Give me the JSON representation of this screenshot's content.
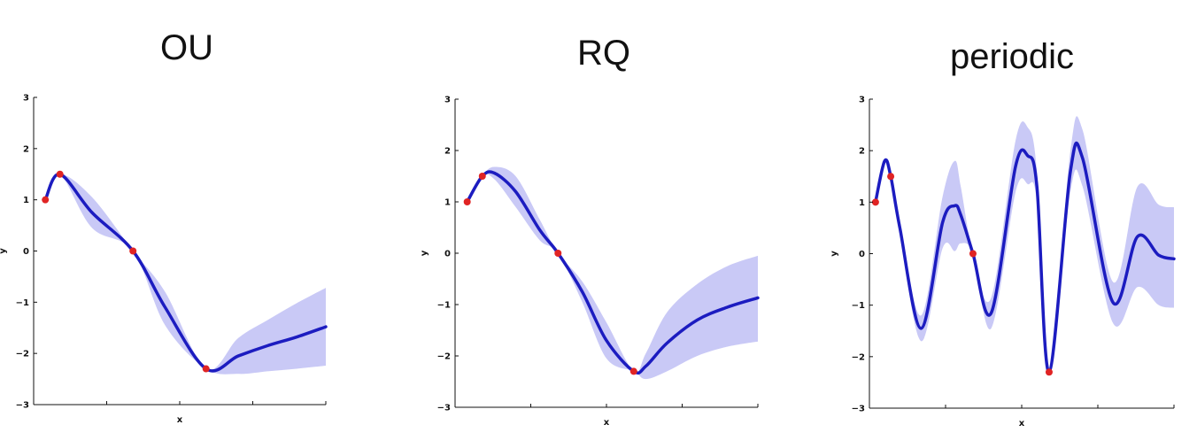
{
  "colors": {
    "mean_line": "#1c1cc0",
    "band": "#c9c9f6",
    "observed_point": "#e02424",
    "axis": "#111111"
  },
  "chart_data": [
    {
      "type": "line",
      "title": "OU",
      "xlabel": "x",
      "ylabel": "y",
      "xlim": [
        0,
        1
      ],
      "ylim": [
        -3,
        3
      ],
      "yticks": [
        "3",
        "2",
        "1",
        "0",
        "−1",
        "−2",
        "−3"
      ],
      "grid": false,
      "observations": [
        {
          "x": 0.04,
          "y": 1.0
        },
        {
          "x": 0.09,
          "y": 1.5
        },
        {
          "x": 0.34,
          "y": 0.0
        },
        {
          "x": 0.59,
          "y": -2.3
        }
      ],
      "series": [
        {
          "role": "mean",
          "x": [
            0.04,
            0.09,
            0.2,
            0.34,
            0.45,
            0.59,
            0.7,
            0.8,
            0.9,
            1.0
          ],
          "y": [
            1.0,
            1.5,
            0.75,
            0.0,
            -1.1,
            -2.3,
            -2.05,
            -1.85,
            -1.68,
            -1.48
          ]
        },
        {
          "role": "upper",
          "x": [
            0.04,
            0.09,
            0.2,
            0.34,
            0.45,
            0.59,
            0.7,
            0.8,
            0.9,
            1.0
          ],
          "y": [
            1.0,
            1.5,
            1.05,
            0.0,
            -0.8,
            -2.3,
            -1.7,
            -1.35,
            -1.02,
            -0.72
          ]
        },
        {
          "role": "lower",
          "x": [
            0.04,
            0.09,
            0.2,
            0.34,
            0.45,
            0.59,
            0.7,
            0.8,
            0.9,
            1.0
          ],
          "y": [
            1.0,
            1.5,
            0.45,
            0.0,
            -1.45,
            -2.3,
            -2.4,
            -2.35,
            -2.3,
            -2.24
          ]
        }
      ]
    },
    {
      "type": "line",
      "title": "RQ",
      "xlabel": "x",
      "ylabel": "y",
      "xlim": [
        0,
        1
      ],
      "ylim": [
        -3,
        3
      ],
      "yticks": [
        "3",
        "2",
        "1",
        "0",
        "−1",
        "−2",
        "−3"
      ],
      "grid": false,
      "observations": [
        {
          "x": 0.04,
          "y": 1.0
        },
        {
          "x": 0.09,
          "y": 1.5
        },
        {
          "x": 0.34,
          "y": 0.0
        },
        {
          "x": 0.59,
          "y": -2.3
        }
      ],
      "series": [
        {
          "role": "mean",
          "x": [
            0.04,
            0.09,
            0.13,
            0.2,
            0.28,
            0.34,
            0.42,
            0.5,
            0.59,
            0.63,
            0.7,
            0.8,
            0.9,
            1.0
          ],
          "y": [
            1.0,
            1.5,
            1.56,
            1.2,
            0.45,
            0.0,
            -0.75,
            -1.7,
            -2.3,
            -2.2,
            -1.75,
            -1.3,
            -1.05,
            -0.87
          ]
        },
        {
          "role": "upper",
          "x": [
            0.04,
            0.09,
            0.13,
            0.2,
            0.28,
            0.34,
            0.42,
            0.5,
            0.59,
            0.63,
            0.7,
            0.8,
            0.9,
            1.0
          ],
          "y": [
            1.0,
            1.5,
            1.68,
            1.5,
            0.65,
            0.0,
            -0.55,
            -1.35,
            -2.3,
            -1.95,
            -1.15,
            -0.6,
            -0.25,
            -0.05
          ]
        },
        {
          "role": "lower",
          "x": [
            0.04,
            0.09,
            0.13,
            0.2,
            0.28,
            0.34,
            0.42,
            0.5,
            0.59,
            0.63,
            0.7,
            0.8,
            0.9,
            1.0
          ],
          "y": [
            1.0,
            1.5,
            1.44,
            0.9,
            0.25,
            0.0,
            -0.95,
            -2.05,
            -2.3,
            -2.45,
            -2.3,
            -2.0,
            -1.82,
            -1.72
          ]
        }
      ]
    },
    {
      "type": "line",
      "title": "periodic",
      "xlabel": "x",
      "ylabel": "y",
      "xlim": [
        0,
        1
      ],
      "ylim": [
        -3,
        3
      ],
      "yticks": [
        "3",
        "2",
        "1",
        "0",
        "−1",
        "−2",
        "−3"
      ],
      "grid": false,
      "observations": [
        {
          "x": 0.02,
          "y": 1.0
        },
        {
          "x": 0.07,
          "y": 1.5
        },
        {
          "x": 0.34,
          "y": 0.0
        },
        {
          "x": 0.59,
          "y": -2.3
        }
      ],
      "series": [
        {
          "role": "mean",
          "x": [
            0.02,
            0.05,
            0.07,
            0.1,
            0.17,
            0.24,
            0.28,
            0.3,
            0.34,
            0.4,
            0.48,
            0.52,
            0.55,
            0.59,
            0.66,
            0.7,
            0.8,
            0.88,
            0.95,
            1.0
          ],
          "y": [
            1.0,
            1.8,
            1.5,
            0.5,
            -1.45,
            0.6,
            0.93,
            0.75,
            0.0,
            -1.15,
            1.7,
            1.9,
            1.3,
            -2.3,
            1.6,
            1.85,
            -0.95,
            0.33,
            -0.03,
            -0.1
          ]
        },
        {
          "role": "upper",
          "x": [
            0.02,
            0.05,
            0.07,
            0.1,
            0.17,
            0.24,
            0.28,
            0.3,
            0.34,
            0.4,
            0.48,
            0.52,
            0.55,
            0.59,
            0.66,
            0.7,
            0.8,
            0.88,
            0.95,
            1.0
          ],
          "y": [
            1.0,
            1.8,
            1.5,
            0.6,
            -1.2,
            1.1,
            1.8,
            1.3,
            0.0,
            -0.85,
            2.2,
            2.45,
            1.6,
            -2.3,
            2.0,
            2.4,
            -0.55,
            1.3,
            0.95,
            0.9
          ]
        },
        {
          "role": "lower",
          "x": [
            0.02,
            0.05,
            0.07,
            0.1,
            0.17,
            0.24,
            0.28,
            0.3,
            0.34,
            0.4,
            0.48,
            0.52,
            0.55,
            0.59,
            0.66,
            0.7,
            0.8,
            0.88,
            0.95,
            1.0
          ],
          "y": [
            1.0,
            1.8,
            1.5,
            0.4,
            -1.7,
            0.1,
            0.05,
            0.2,
            0.0,
            -1.45,
            1.2,
            1.35,
            1.0,
            -2.3,
            1.2,
            1.3,
            -1.35,
            -0.65,
            -1.0,
            -1.05
          ]
        }
      ]
    }
  ]
}
